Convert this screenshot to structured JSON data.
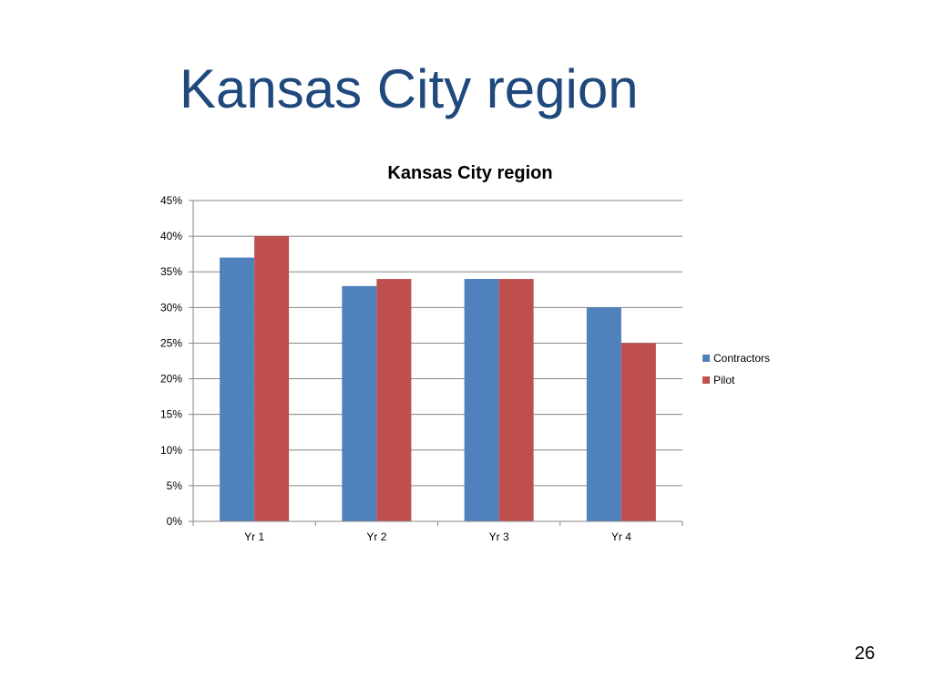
{
  "slide": {
    "title": "Kansas City region",
    "page_number": "26"
  },
  "chart_data": {
    "type": "bar",
    "title": "Kansas City region",
    "xlabel": "",
    "ylabel": "",
    "categories": [
      "Yr 1",
      "Yr 2",
      "Yr 3",
      "Yr 4"
    ],
    "series": [
      {
        "name": "Contractors",
        "values": [
          0.37,
          0.33,
          0.34,
          0.3
        ],
        "color": "#4f81bd"
      },
      {
        "name": "Pilot",
        "values": [
          0.4,
          0.34,
          0.34,
          0.25
        ],
        "color": "#c0504d"
      }
    ],
    "ylim": [
      0,
      0.45
    ],
    "yticks": [
      0,
      0.05,
      0.1,
      0.15,
      0.2,
      0.25,
      0.3,
      0.35,
      0.4,
      0.45
    ],
    "ytick_labels": [
      "0%",
      "5%",
      "10%",
      "15%",
      "20%",
      "25%",
      "30%",
      "35%",
      "40%",
      "45%"
    ],
    "grid": true,
    "legend_position": "right"
  }
}
